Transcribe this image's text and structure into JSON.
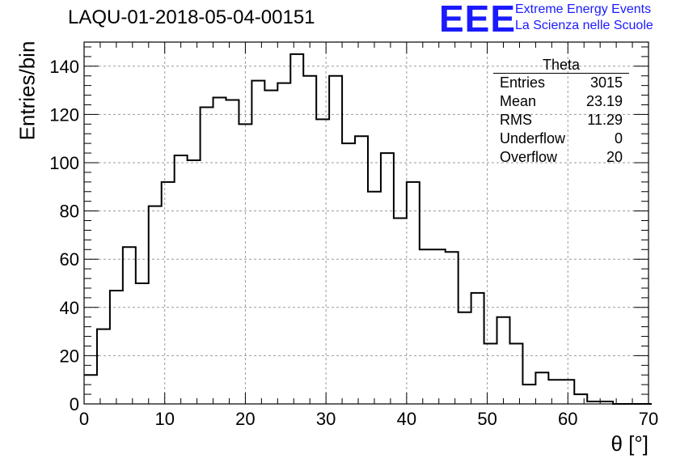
{
  "header": {
    "run_title": "LAQU-01-2018-05-04-00151",
    "logo_text": "EEE",
    "logo_line1": "Extreme Energy Events",
    "logo_line2": "La Scienza nelle Scuole"
  },
  "stats": {
    "title": "Theta",
    "rows": [
      {
        "label": "Entries",
        "value": "3015"
      },
      {
        "label": "Mean",
        "value": "23.19"
      },
      {
        "label": "RMS",
        "value": "11.29"
      },
      {
        "label": "Underflow",
        "value": "0"
      },
      {
        "label": "Overflow",
        "value": "20"
      }
    ]
  },
  "colors": {
    "logo": "#1a1aff",
    "line": "#000000",
    "grid": "#9a9a9a"
  },
  "chart_data": {
    "type": "histogram",
    "xlabel": "θ [°]",
    "ylabel": "Entries/bin",
    "xlim": [
      0,
      70
    ],
    "ylim": [
      0,
      150
    ],
    "grid": true,
    "bin_width": 1.6,
    "bin_start": 0,
    "xticks": [
      0,
      10,
      20,
      30,
      40,
      50,
      60,
      70
    ],
    "yticks": [
      0,
      20,
      40,
      60,
      80,
      100,
      120,
      140
    ],
    "values": [
      12,
      31,
      47,
      65,
      50,
      82,
      92,
      103,
      101,
      123,
      127,
      126,
      116,
      134,
      130,
      133,
      145,
      136,
      118,
      136,
      108,
      111,
      88,
      104,
      77,
      92,
      64,
      64,
      63,
      38,
      46,
      25,
      36,
      25,
      8,
      13,
      10,
      10,
      4,
      1,
      1,
      0,
      0,
      0
    ]
  }
}
